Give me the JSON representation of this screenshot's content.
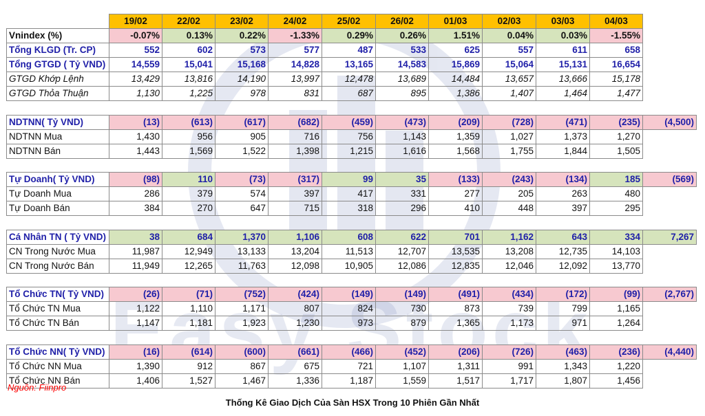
{
  "header_dates": [
    "19/02",
    "22/02",
    "23/02",
    "24/02",
    "25/02",
    "26/02",
    "01/03",
    "02/03",
    "03/03",
    "04/03"
  ],
  "watermark_text": "Easy Stock",
  "colors": {
    "header": "#ffc000",
    "negative": "#f7c9d0",
    "positive": "#d6e4bc",
    "blue_text": "#1f1fa8",
    "source_red": "#ff0000"
  },
  "rows": [
    {
      "kind": "data",
      "style": "bold",
      "label": "Vnindex (%)",
      "values": [
        "-0.07%",
        "0.13%",
        "0.22%",
        "-1.33%",
        "0.29%",
        "0.26%",
        "1.51%",
        "0.04%",
        "0.03%",
        "-1.55%"
      ],
      "sign": [
        "neg",
        "pos",
        "pos",
        "neg",
        "pos",
        "pos",
        "pos",
        "pos",
        "pos",
        "neg"
      ],
      "extra": ""
    },
    {
      "kind": "data",
      "style": "blue-bold",
      "label": "Tổng KLGD (Tr. CP)",
      "values": [
        "552",
        "602",
        "573",
        "577",
        "487",
        "533",
        "625",
        "557",
        "611",
        "658"
      ],
      "extra": ""
    },
    {
      "kind": "data",
      "style": "blue-bold",
      "label": "Tổng GTGD ( Tỷ VND)",
      "values": [
        "14,559",
        "15,041",
        "15,168",
        "14,828",
        "13,165",
        "14,583",
        "15,869",
        "15,064",
        "15,131",
        "16,654"
      ],
      "extra": ""
    },
    {
      "kind": "data",
      "style": "italic",
      "label": "GTGD Khớp Lệnh",
      "values": [
        "13,429",
        "13,816",
        "14,190",
        "13,997",
        "12,478",
        "13,689",
        "14,484",
        "13,657",
        "13,666",
        "15,178"
      ],
      "extra": ""
    },
    {
      "kind": "data",
      "style": "italic",
      "label": "GTGD Thỏa Thuận",
      "values": [
        "1,130",
        "1,225",
        "978",
        "831",
        "687",
        "895",
        "1,386",
        "1,407",
        "1,464",
        "1,477"
      ],
      "extra": ""
    },
    {
      "kind": "gap"
    },
    {
      "kind": "data",
      "style": "blue-bold",
      "label": "NDTNN( Tỷ VND)",
      "values": [
        "(13)",
        "(613)",
        "(617)",
        "(682)",
        "(459)",
        "(473)",
        "(209)",
        "(728)",
        "(471)",
        "(235)"
      ],
      "sign": [
        "neg",
        "neg",
        "neg",
        "neg",
        "neg",
        "neg",
        "neg",
        "neg",
        "neg",
        "neg"
      ],
      "extra": "(4,500)",
      "extra_sign": "neg"
    },
    {
      "kind": "data",
      "style": "",
      "label": "NDTNN Mua",
      "values": [
        "1,430",
        "956",
        "905",
        "716",
        "756",
        "1,143",
        "1,359",
        "1,027",
        "1,373",
        "1,270"
      ],
      "extra": ""
    },
    {
      "kind": "data",
      "style": "",
      "label": "NDTNN Bán",
      "values": [
        "1,443",
        "1,569",
        "1,522",
        "1,398",
        "1,215",
        "1,616",
        "1,568",
        "1,755",
        "1,844",
        "1,505"
      ],
      "extra": ""
    },
    {
      "kind": "gap"
    },
    {
      "kind": "data",
      "style": "blue-bold",
      "label": "Tự Doanh( Tỷ VND)",
      "values": [
        "(98)",
        "110",
        "(73)",
        "(317)",
        "99",
        "35",
        "(133)",
        "(243)",
        "(134)",
        "185"
      ],
      "sign": [
        "neg",
        "pos",
        "neg",
        "neg",
        "pos",
        "pos",
        "neg",
        "neg",
        "neg",
        "pos"
      ],
      "extra": "(569)",
      "extra_sign": "neg"
    },
    {
      "kind": "data",
      "style": "",
      "label": "Tự Doanh Mua",
      "values": [
        "286",
        "379",
        "574",
        "397",
        "417",
        "331",
        "277",
        "205",
        "263",
        "480"
      ],
      "extra": ""
    },
    {
      "kind": "data",
      "style": "",
      "label": "Tự Doanh Bán",
      "values": [
        "384",
        "270",
        "647",
        "715",
        "318",
        "296",
        "410",
        "448",
        "397",
        "295"
      ],
      "extra": ""
    },
    {
      "kind": "gap"
    },
    {
      "kind": "data",
      "style": "blue-bold",
      "label": "Cá Nhân TN ( Tỷ VND)",
      "values": [
        "38",
        "684",
        "1,370",
        "1,106",
        "608",
        "622",
        "701",
        "1,162",
        "643",
        "334"
      ],
      "sign": [
        "pos",
        "pos",
        "pos",
        "pos",
        "pos",
        "pos",
        "pos",
        "pos",
        "pos",
        "pos"
      ],
      "extra": "7,267",
      "extra_sign": "pos"
    },
    {
      "kind": "data",
      "style": "",
      "label": "CN Trong Nước Mua",
      "values": [
        "11,987",
        "12,949",
        "13,133",
        "13,204",
        "11,513",
        "12,707",
        "13,535",
        "13,208",
        "12,735",
        "14,103"
      ],
      "extra": ""
    },
    {
      "kind": "data",
      "style": "",
      "label": "CN Trong Nước Bán",
      "values": [
        "11,949",
        "12,265",
        "11,763",
        "12,098",
        "10,905",
        "12,086",
        "12,835",
        "12,046",
        "12,092",
        "13,770"
      ],
      "extra": ""
    },
    {
      "kind": "gap"
    },
    {
      "kind": "data",
      "style": "blue-bold",
      "label": "Tổ Chức TN( Tỷ VND)",
      "values": [
        "(26)",
        "(71)",
        "(752)",
        "(424)",
        "(149)",
        "(149)",
        "(491)",
        "(434)",
        "(172)",
        "(99)"
      ],
      "sign": [
        "neg",
        "neg",
        "neg",
        "neg",
        "neg",
        "neg",
        "neg",
        "neg",
        "neg",
        "neg"
      ],
      "extra": "(2,767)",
      "extra_sign": "neg"
    },
    {
      "kind": "data",
      "style": "",
      "label": "Tổ Chức TN Mua",
      "values": [
        "1,122",
        "1,110",
        "1,171",
        "807",
        "824",
        "730",
        "873",
        "739",
        "799",
        "1,165"
      ],
      "extra": ""
    },
    {
      "kind": "data",
      "style": "",
      "label": "Tổ Chức TN Bán",
      "values": [
        "1,147",
        "1,181",
        "1,923",
        "1,230",
        "973",
        "879",
        "1,365",
        "1,173",
        "971",
        "1,264"
      ],
      "extra": ""
    },
    {
      "kind": "gap"
    },
    {
      "kind": "data",
      "style": "blue-bold",
      "label": "Tổ Chức NN( Tỷ VND)",
      "values": [
        "(16)",
        "(614)",
        "(600)",
        "(661)",
        "(466)",
        "(452)",
        "(206)",
        "(726)",
        "(463)",
        "(236)"
      ],
      "sign": [
        "neg",
        "neg",
        "neg",
        "neg",
        "neg",
        "neg",
        "neg",
        "neg",
        "neg",
        "neg"
      ],
      "extra": "(4,440)",
      "extra_sign": "neg"
    },
    {
      "kind": "data",
      "style": "",
      "label": "Tổ Chức NN Mua",
      "values": [
        "1,390",
        "912",
        "867",
        "675",
        "721",
        "1,107",
        "1,311",
        "991",
        "1,343",
        "1,220"
      ],
      "extra": ""
    },
    {
      "kind": "data",
      "style": "",
      "label": "Tổ Chức NN Bán",
      "values": [
        "1,406",
        "1,527",
        "1,467",
        "1,336",
        "1,187",
        "1,559",
        "1,517",
        "1,717",
        "1,807",
        "1,456"
      ],
      "extra": ""
    }
  ],
  "source_note": "Nguồn: Fiinpro",
  "caption": "Thống Kê Giao Dịch Của Sàn HSX Trong 10 Phiên Gần Nhất"
}
